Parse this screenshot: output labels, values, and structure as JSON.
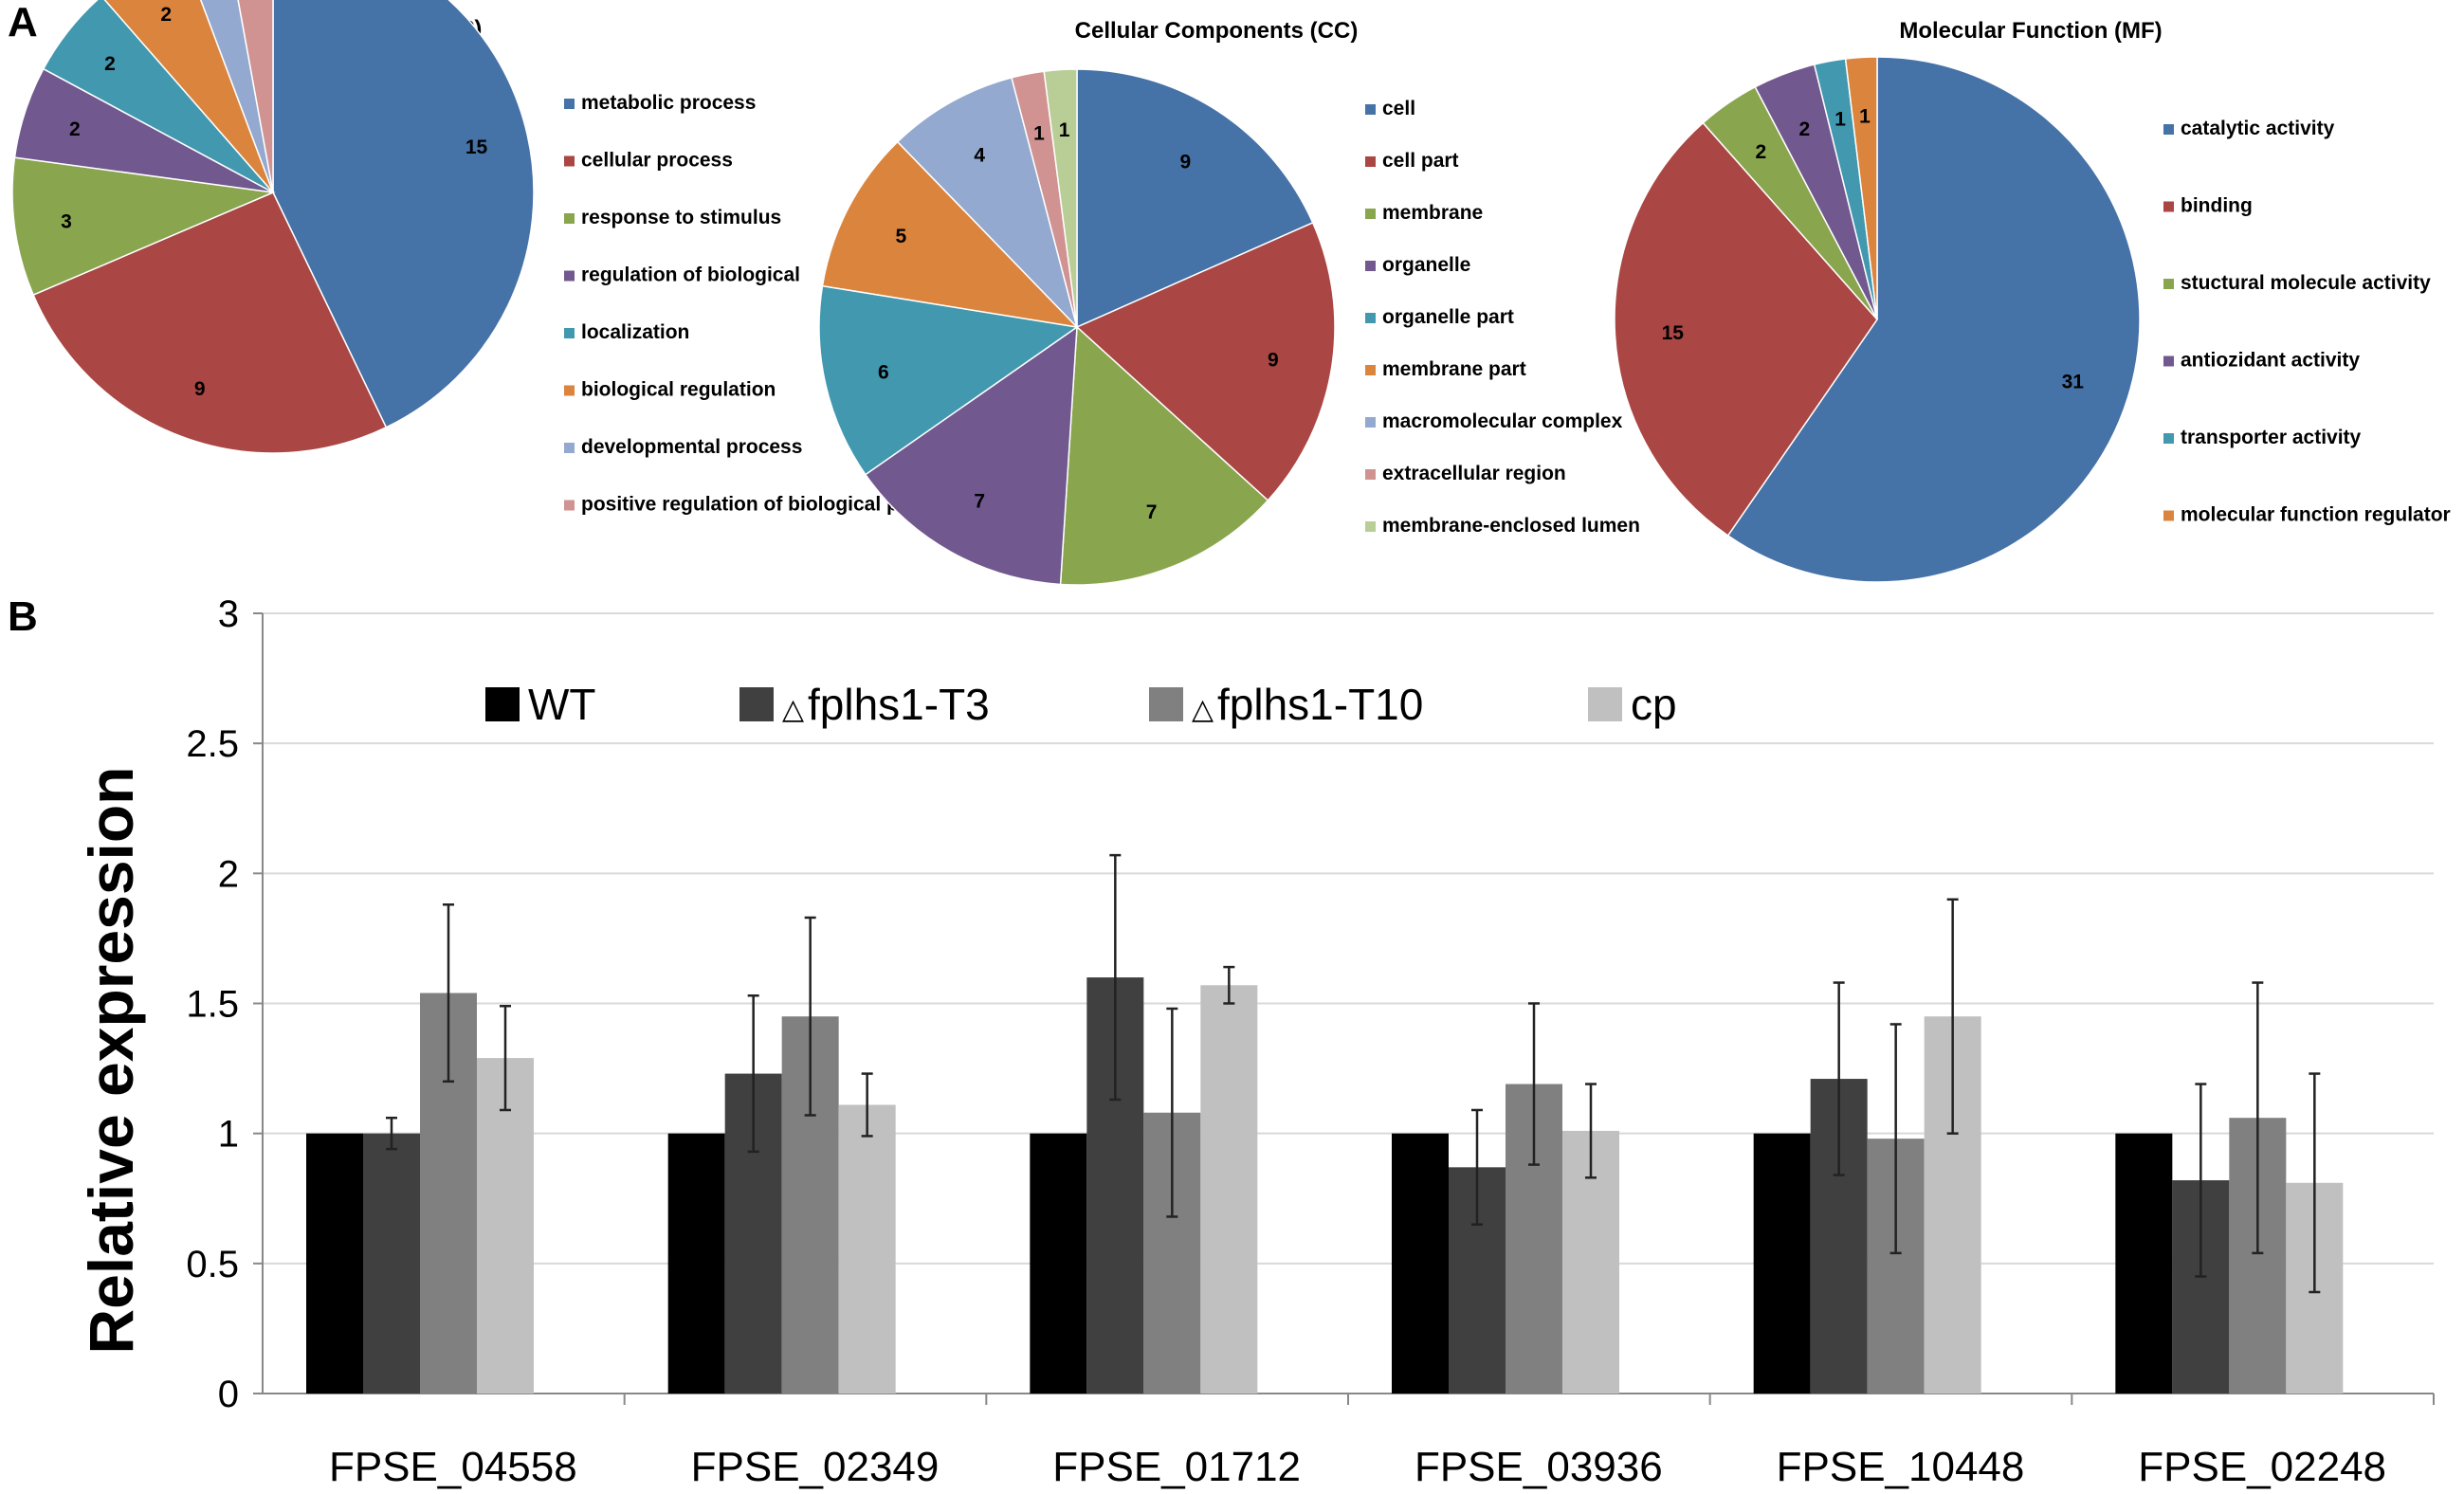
{
  "panel_labels": {
    "a": "A",
    "b": "B"
  },
  "chart_data": [
    {
      "type": "pie",
      "title": "Biological Process (BP)",
      "labels": [
        "metabolic process",
        "cellular process",
        "response to stimulus",
        "regulation of biological",
        "localization",
        "biological regulation",
        "developmental process",
        "positive regulation of biological process"
      ],
      "values": [
        15,
        9,
        3,
        2,
        2,
        2,
        1,
        1
      ],
      "colors": [
        "#4572A7",
        "#AA4643",
        "#89A54E",
        "#71588F",
        "#4198AF",
        "#DB843D",
        "#93A9CF",
        "#D19392"
      ]
    },
    {
      "type": "pie",
      "title": "Cellular Components (CC)",
      "labels": [
        "cell",
        "cell part",
        "membrane",
        "organelle",
        "organelle part",
        "membrane part",
        "macromolecular complex",
        "extracellular region",
        "membrane-enclosed lumen"
      ],
      "values": [
        9,
        9,
        7,
        7,
        6,
        5,
        4,
        1,
        1
      ],
      "colors": [
        "#4572A7",
        "#AA4643",
        "#89A54E",
        "#71588F",
        "#4198AF",
        "#DB843D",
        "#93A9CF",
        "#D19392",
        "#B9CD96"
      ]
    },
    {
      "type": "pie",
      "title": "Molecular Function (MF)",
      "labels": [
        "catalytic activity",
        "binding",
        "stuctural molecule activity",
        "antiozidant activity",
        "transporter activity",
        "molecular function regulator"
      ],
      "values": [
        31,
        15,
        2,
        2,
        1,
        1
      ],
      "colors": [
        "#4572A7",
        "#AA4643",
        "#89A54E",
        "#71588F",
        "#4198AF",
        "#DB843D"
      ]
    },
    {
      "type": "bar",
      "title": "",
      "xlabel": "",
      "ylabel": "Relative  expression",
      "ylim": [
        0,
        3
      ],
      "yticks": [
        0,
        0.5,
        1,
        1.5,
        2,
        2.5,
        3
      ],
      "ytick_labels": [
        "0",
        "0.5",
        "1",
        "1.5",
        "2",
        "2.5",
        "3"
      ],
      "grid": true,
      "categories": [
        "FPSE_04558",
        "FPSE_02349",
        "FPSE_01712",
        "FPSE_03936",
        "FPSE_10448",
        "FPSE_02248"
      ],
      "series": [
        {
          "name": "WT",
          "legend_prefix": "",
          "color": "#000000",
          "values": [
            1,
            1,
            1,
            1,
            1,
            1
          ],
          "errors": [
            0,
            0,
            0,
            0,
            0,
            0
          ]
        },
        {
          "name": "fplhs1-T3",
          "legend_prefix": "△",
          "color": "#404040",
          "values": [
            1.0,
            1.23,
            1.6,
            0.87,
            1.21,
            0.82
          ],
          "errors": [
            0.06,
            0.3,
            0.47,
            0.22,
            0.37,
            0.37
          ]
        },
        {
          "name": "fplhs1-T10",
          "legend_prefix": "△",
          "color": "#808080",
          "values": [
            1.54,
            1.45,
            1.08,
            1.19,
            0.98,
            1.06
          ],
          "errors": [
            0.34,
            0.38,
            0.4,
            0.31,
            0.44,
            0.52
          ]
        },
        {
          "name": "cp",
          "legend_prefix": "",
          "color": "#C0C0C0",
          "values": [
            1.29,
            1.11,
            1.57,
            1.01,
            1.45,
            0.81
          ],
          "errors": [
            0.2,
            0.12,
            0.07,
            0.18,
            0.45,
            0.42
          ]
        }
      ]
    }
  ]
}
